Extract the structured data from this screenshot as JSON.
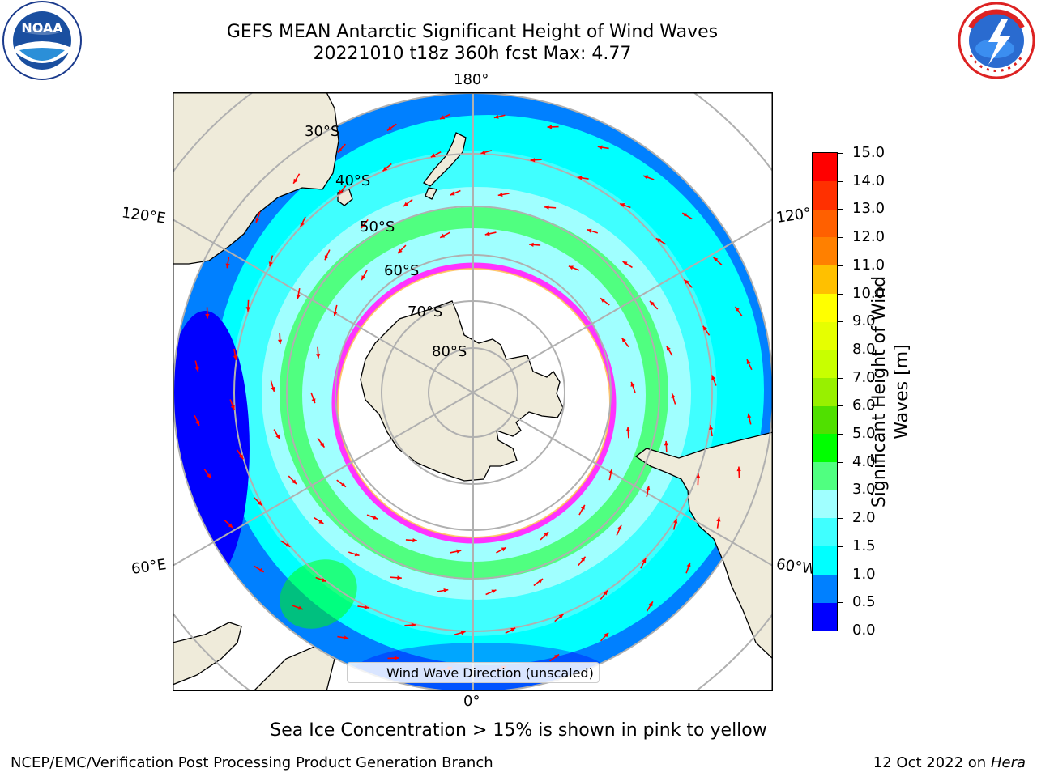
{
  "title": {
    "line1": "GEFS MEAN Antarctic Significant Height of Wind Waves",
    "line2": "20221010 t18z 360h fcst   Max: 4.77"
  },
  "logos": {
    "noaa": {
      "icon": "noaa-logo",
      "text": "NOAA",
      "ring_text": "NATIONAL OCEANIC AND ATMOSPHERIC ADMINISTRATION · U.S. DEPARTMENT OF COMMERCE"
    },
    "nws": {
      "icon": "nws-logo",
      "ring_text": "NATIONAL WEATHER SERVICE"
    }
  },
  "map": {
    "projection": "south-polar-stereographic",
    "longitude_labels": {
      "top": "180°",
      "bottom": "0°",
      "upper_left": "120°E",
      "lower_left": "60°E",
      "upper_right": "120°",
      "lower_right": "60°W"
    },
    "latitude_labels": [
      "30°S",
      "40°S",
      "50°S",
      "60°S",
      "70°S",
      "80°S"
    ],
    "legend_label": "Wind Wave Direction (unscaled)",
    "colors": {
      "land": "#efebda",
      "ocean_low": "#0000ff",
      "sea_ice_edge": "#ff33ff",
      "arrow": "#ff0000",
      "grid": "#b0b0b0"
    }
  },
  "colorbar": {
    "label": "Significant Height of Wind Waves [m]",
    "ticks": [
      "0.0",
      "0.5",
      "1.0",
      "1.5",
      "2.0",
      "3.0",
      "4.0",
      "5.0",
      "6.0",
      "7.0",
      "8.0",
      "9.0",
      "10.0",
      "11.0",
      "12.0",
      "13.0",
      "14.0",
      "15.0"
    ],
    "colors": [
      "#0000ff",
      "#0080ff",
      "#00ffff",
      "#40ffff",
      "#a0ffff",
      "#50ff80",
      "#00ff00",
      "#50e000",
      "#98f000",
      "#c8ff00",
      "#e6ff00",
      "#ffff00",
      "#ffc000",
      "#ff8000",
      "#ff6000",
      "#ff3000",
      "#ff0000"
    ]
  },
  "sea_ice_note": "Sea Ice Concentration > 15% is shown in pink to yellow",
  "footer": {
    "left": "NCEP/EMC/Verification Post Processing Product Generation Branch",
    "right_prefix": "12 Oct 2022 on ",
    "right_machine": "Hera"
  }
}
